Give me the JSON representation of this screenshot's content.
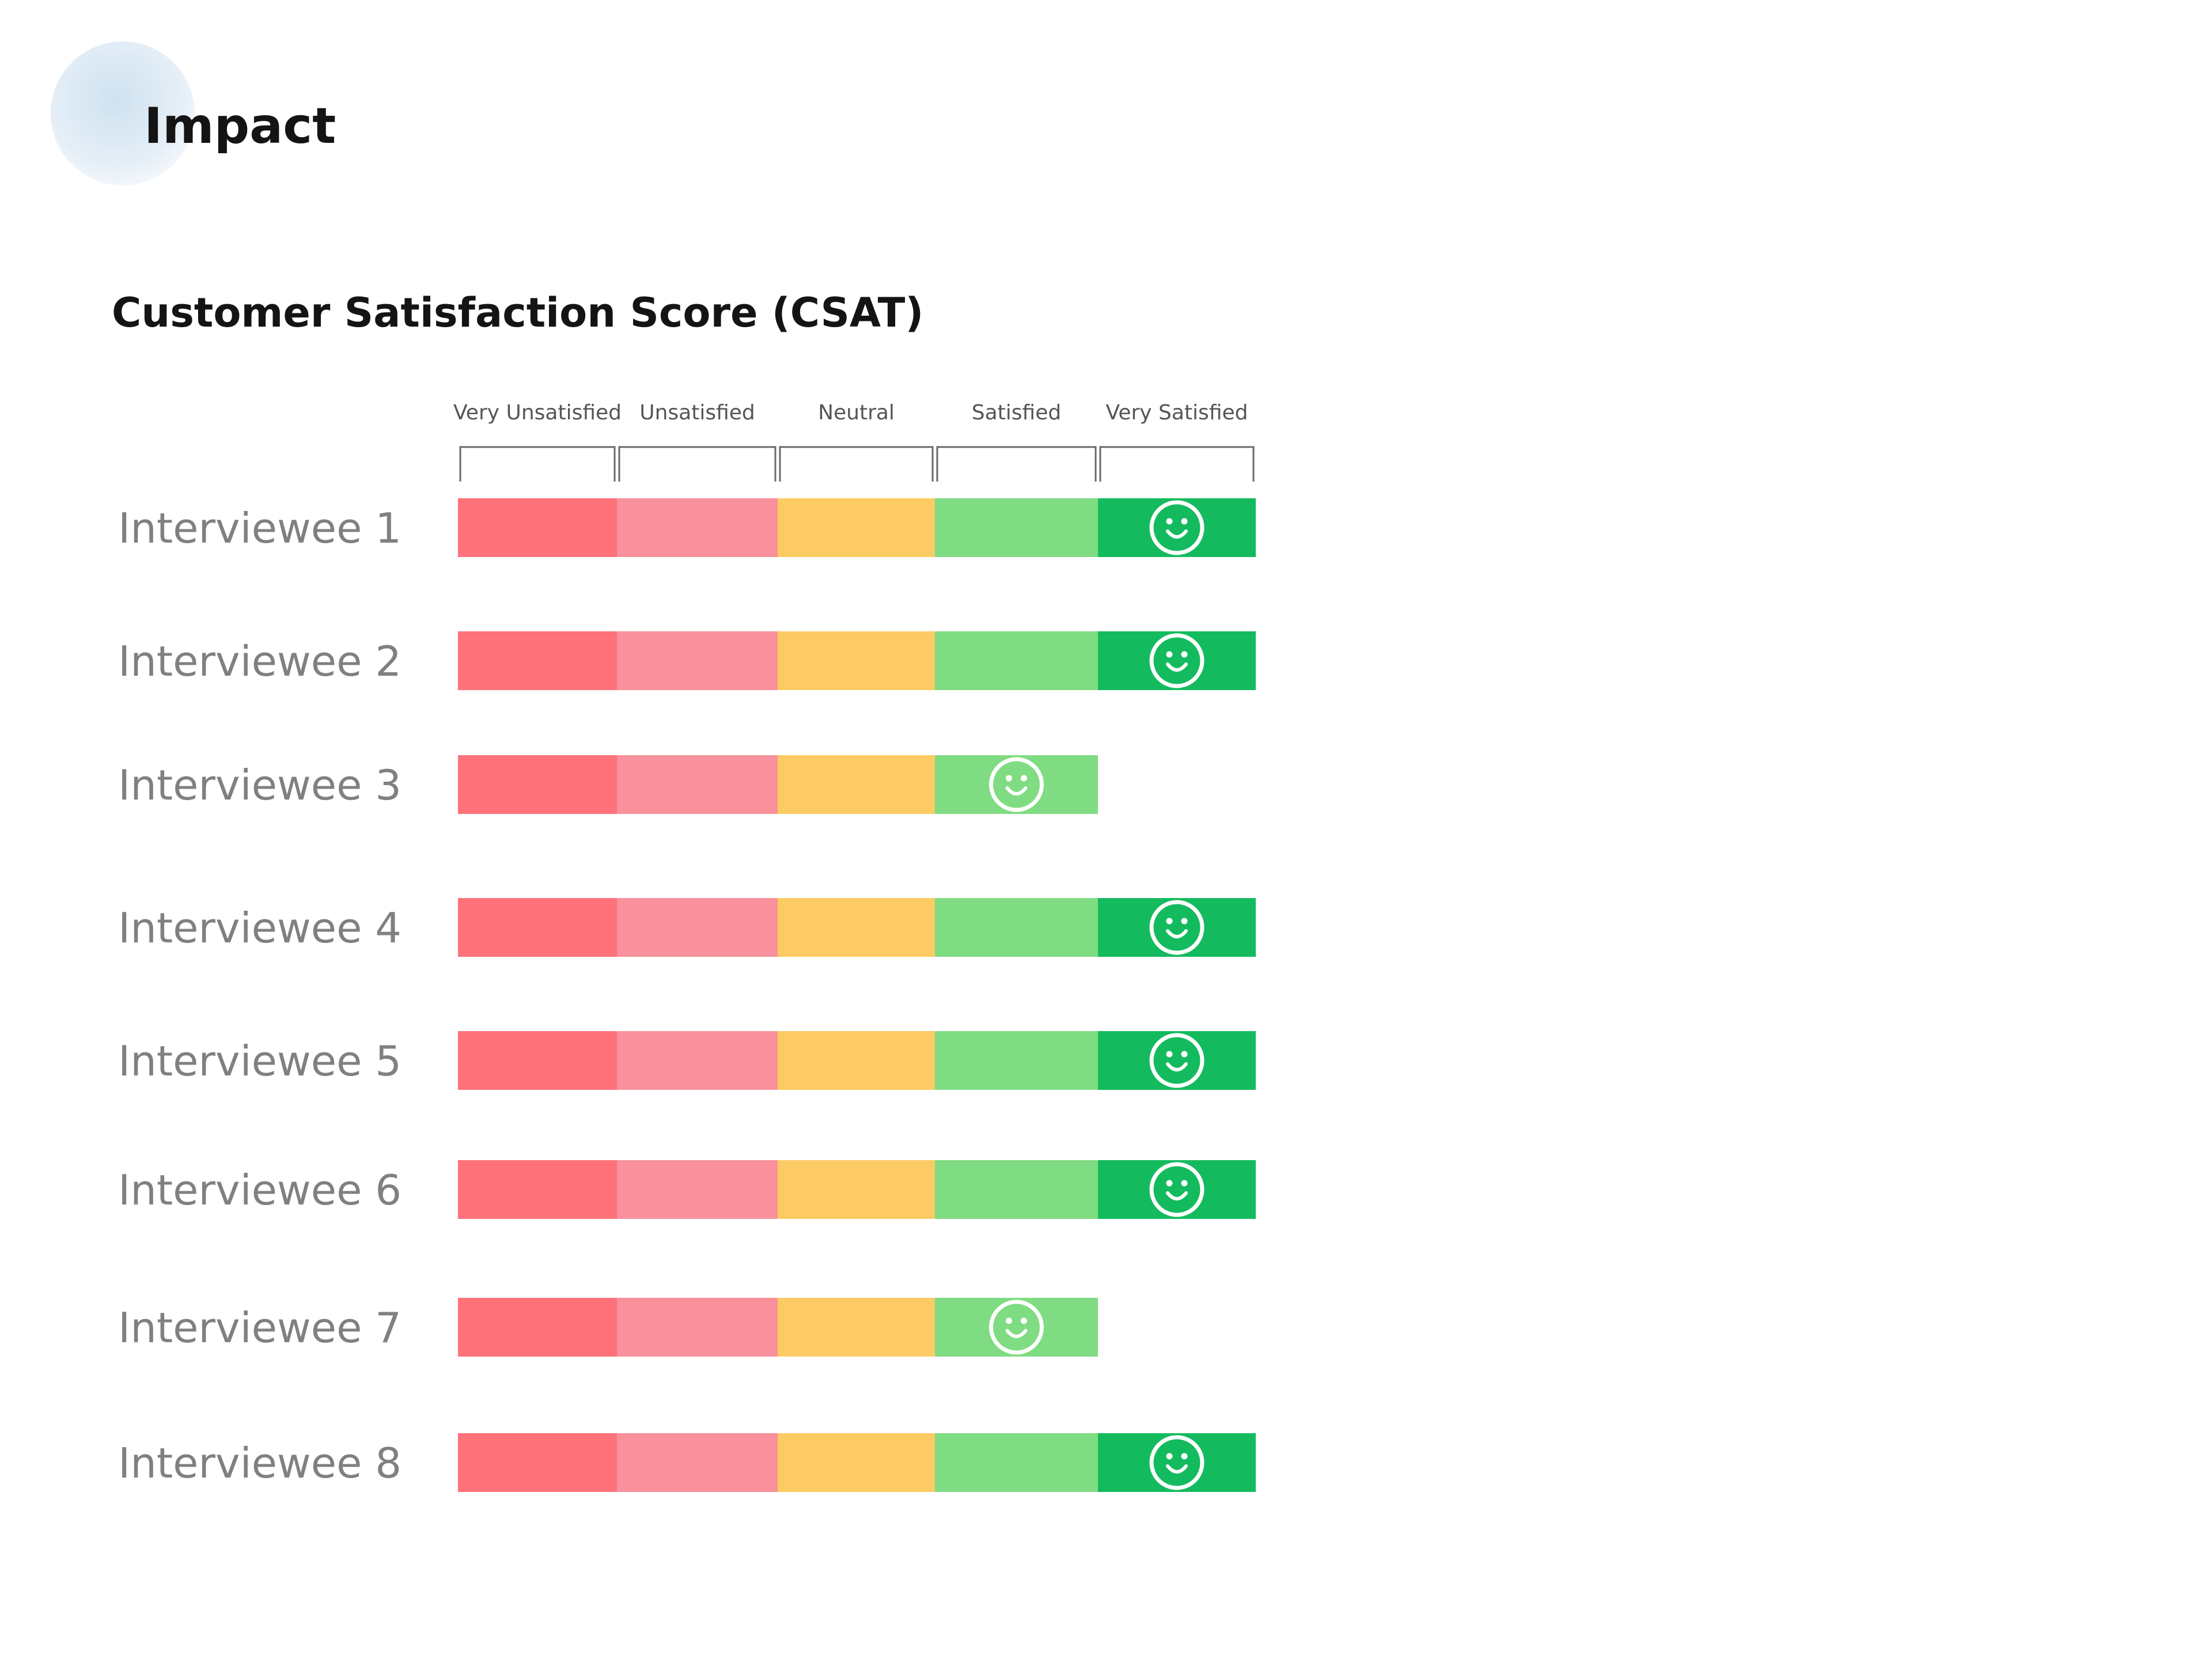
{
  "header": {
    "title": "Impact"
  },
  "chart_data": {
    "type": "table",
    "title": "Customer Satisfaction Score (CSAT)",
    "categories": [
      "Very Unsatisfied",
      "Unsatisfied",
      "Neutral",
      "Satisfied",
      "Very Satisfied"
    ],
    "category_colors": [
      "#ff727a",
      "#f8919b",
      "#fccb64",
      "#80dc82",
      "#14bb5e"
    ],
    "marker_icon": "smiley-icon",
    "rows": [
      {
        "label": "Interviewee 1",
        "value": "Very Satisfied",
        "level": 5
      },
      {
        "label": "Interviewee 2",
        "value": "Very Satisfied",
        "level": 5
      },
      {
        "label": "Interviewee 3",
        "value": "Satisfied",
        "level": 4
      },
      {
        "label": "Interviewee 4",
        "value": "Very Satisfied",
        "level": 5
      },
      {
        "label": "Interviewee 5",
        "value": "Very Satisfied",
        "level": 5
      },
      {
        "label": "Interviewee 6",
        "value": "Very Satisfied",
        "level": 5
      },
      {
        "label": "Interviewee 7",
        "value": "Satisfied",
        "level": 4
      },
      {
        "label": "Interviewee 8",
        "value": "Very Satisfied",
        "level": 5
      }
    ]
  }
}
